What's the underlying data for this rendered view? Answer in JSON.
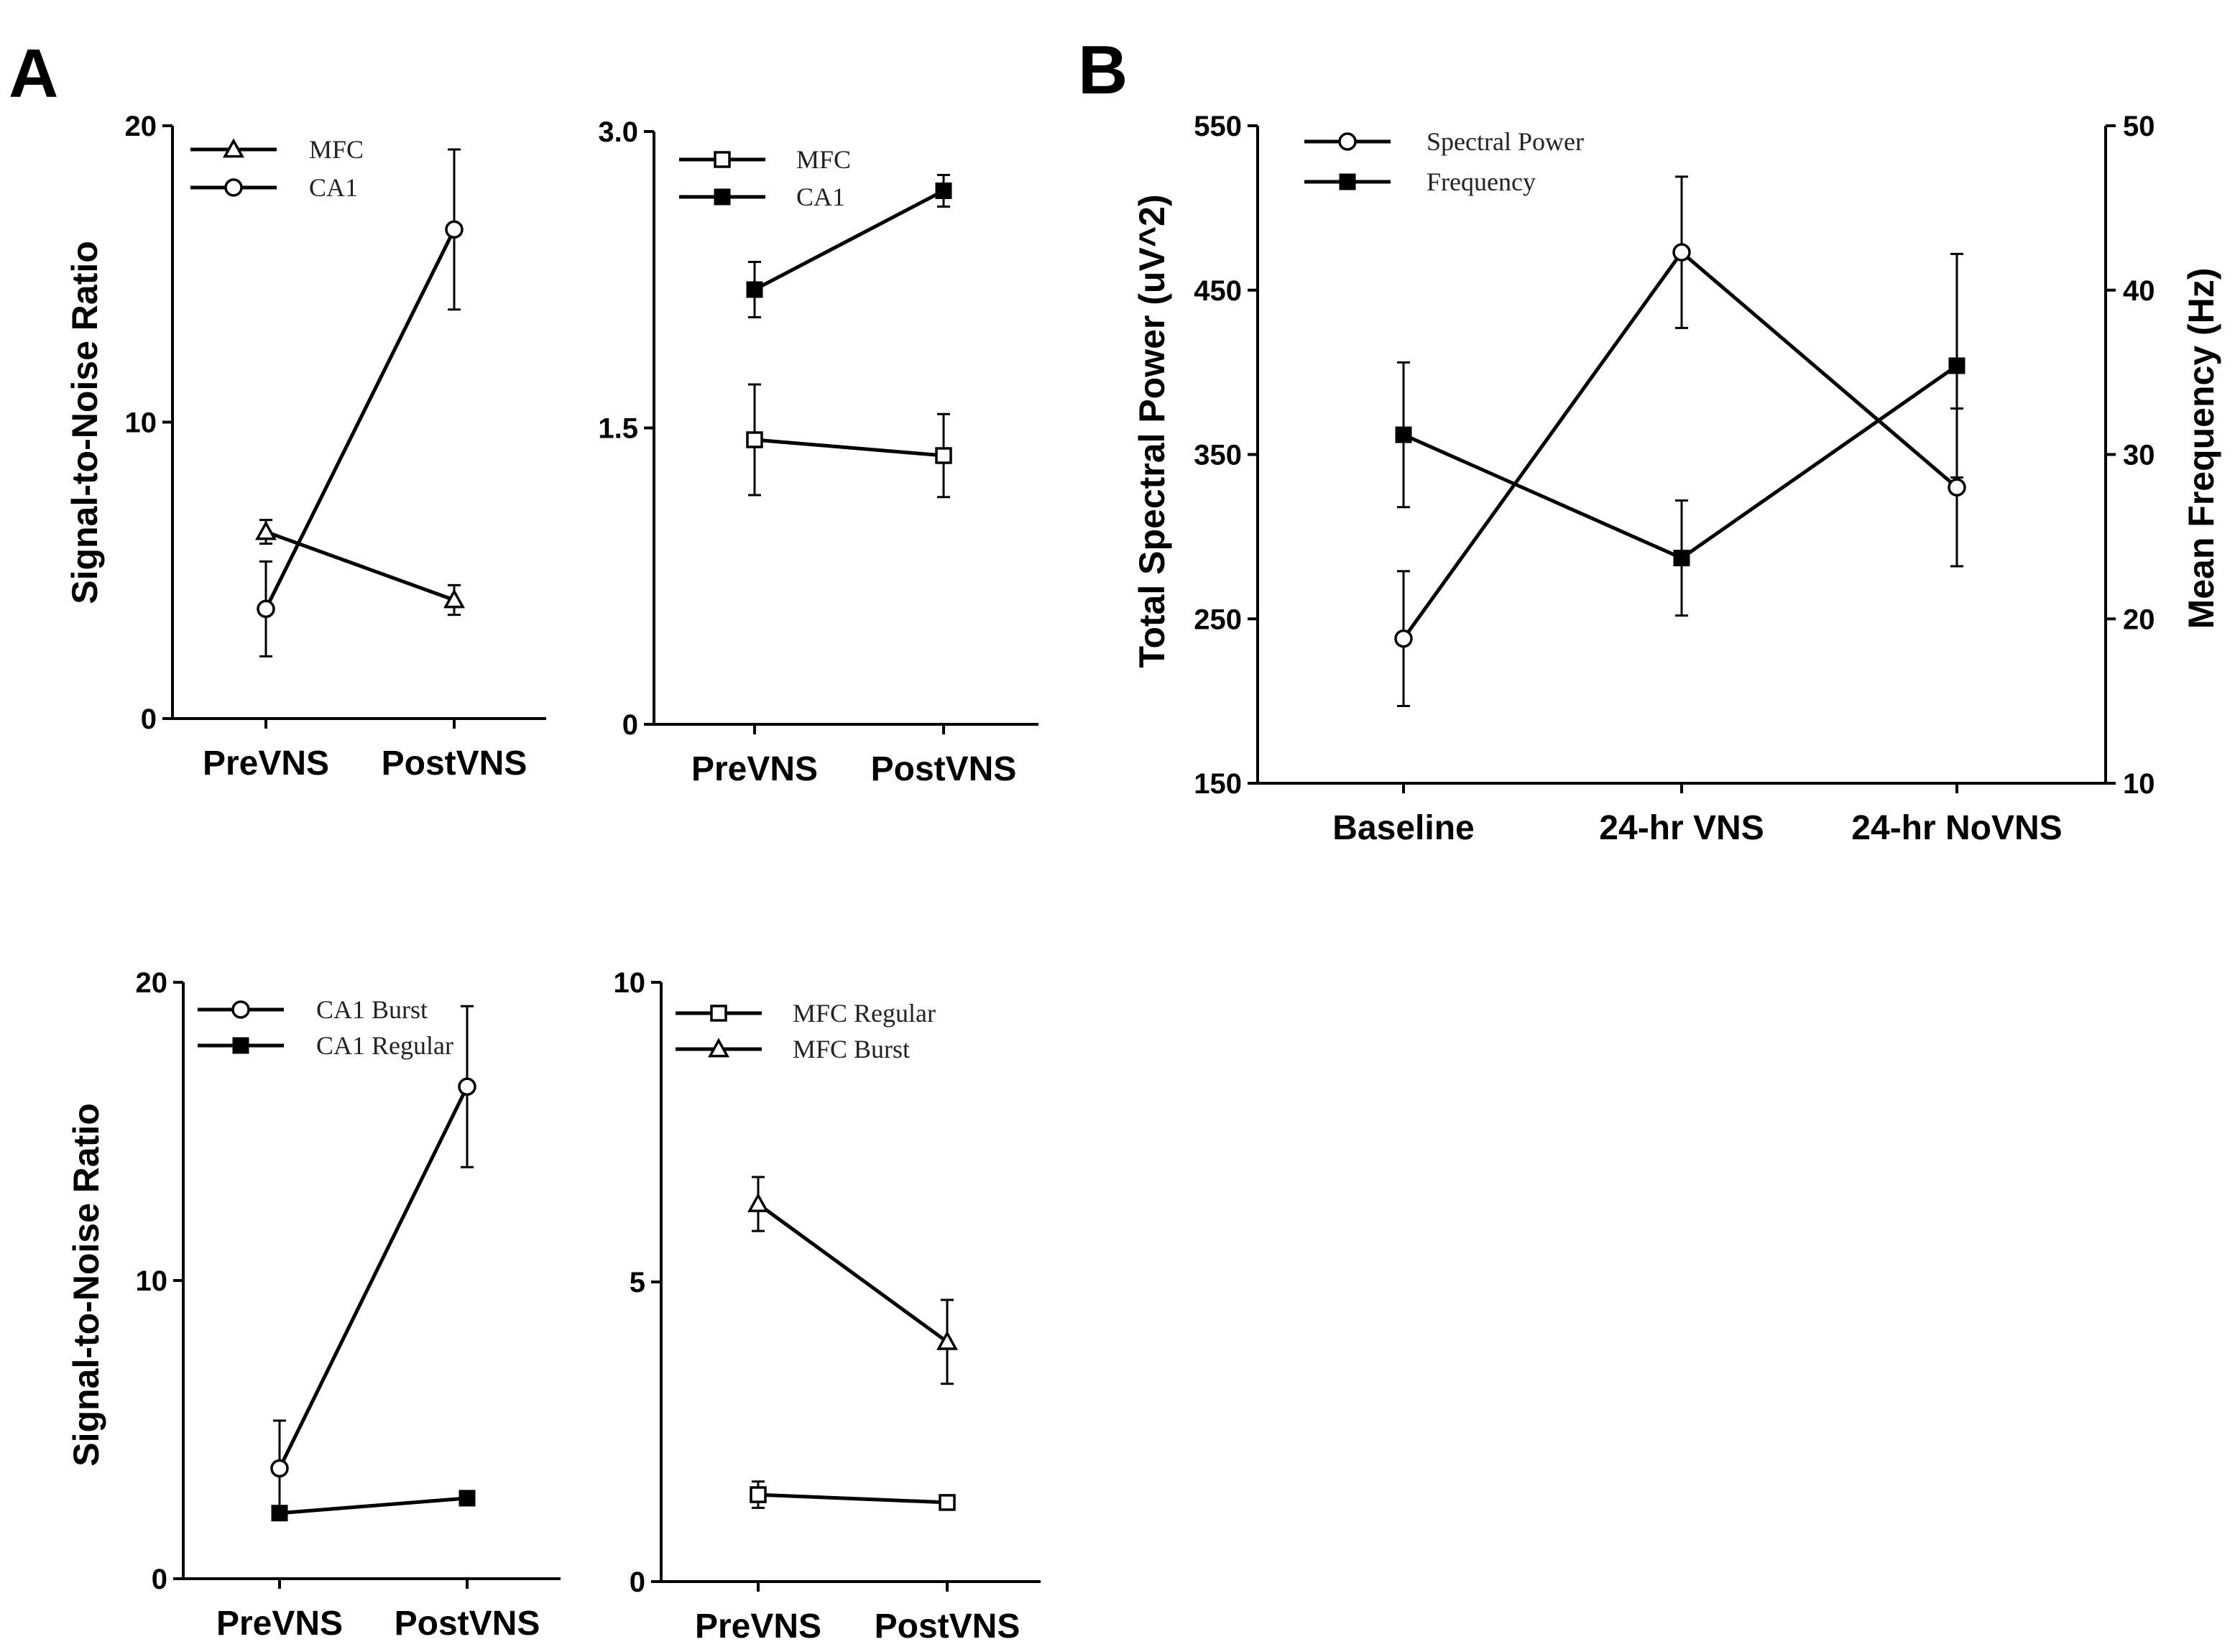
{
  "panel_labels": [
    "A",
    "B"
  ],
  "chart_data": [
    {
      "type": "line",
      "panel": "A",
      "ylabel": "Signal-to-Noise Ratio",
      "xlabel": "",
      "categories": [
        "PreVNS",
        "PostVNS"
      ],
      "ylim": [
        0,
        20
      ],
      "yticks": [
        0,
        10,
        20
      ],
      "ytick_labels": [
        "0",
        "10",
        "20"
      ],
      "series": [
        {
          "name": "MFC",
          "marker": "triangle-open",
          "values": [
            6.3,
            4.0
          ],
          "err": [
            0.4,
            0.5
          ]
        },
        {
          "name": "CA1",
          "marker": "circle-open",
          "values": [
            3.7,
            16.5
          ],
          "err": [
            1.6,
            2.7
          ]
        }
      ]
    },
    {
      "type": "line",
      "panel": "A",
      "ylabel": "",
      "xlabel": "",
      "categories": [
        "PreVNS",
        "PostVNS"
      ],
      "ylim": [
        0,
        3.0
      ],
      "yticks": [
        0,
        1.5,
        3.0
      ],
      "ytick_labels": [
        "0",
        "1.5",
        "3.0"
      ],
      "series": [
        {
          "name": "MFC",
          "marker": "square-open",
          "values": [
            1.44,
            1.36
          ],
          "err": [
            0.28,
            0.21
          ]
        },
        {
          "name": "CA1",
          "marker": "square-filled",
          "values": [
            2.2,
            2.7
          ],
          "err": [
            0.14,
            0.08
          ]
        }
      ]
    },
    {
      "type": "line",
      "panel": "A",
      "ylabel": "Signal-to-Noise Ratio",
      "xlabel": "",
      "categories": [
        "PreVNS",
        "PostVNS"
      ],
      "ylim": [
        0,
        20
      ],
      "yticks": [
        0,
        10,
        20
      ],
      "ytick_labels": [
        "0",
        "10",
        "20"
      ],
      "series": [
        {
          "name": "CA1 Burst",
          "marker": "circle-open",
          "values": [
            3.7,
            16.5
          ],
          "err": [
            1.6,
            2.7
          ]
        },
        {
          "name": "CA1 Regular",
          "marker": "square-filled",
          "values": [
            2.2,
            2.7
          ],
          "err": [
            0.15,
            0.1
          ]
        }
      ]
    },
    {
      "type": "line",
      "panel": "A",
      "ylabel": "",
      "xlabel": "",
      "categories": [
        "PreVNS",
        "PostVNS"
      ],
      "ylim": [
        0,
        10
      ],
      "yticks": [
        0,
        5,
        10
      ],
      "ytick_labels": [
        "0",
        "5",
        "10"
      ],
      "series": [
        {
          "name": "MFC Regular",
          "marker": "square-open",
          "values": [
            1.45,
            1.32
          ],
          "err": [
            0.22,
            0.1
          ]
        },
        {
          "name": "MFC Burst",
          "marker": "triangle-open",
          "values": [
            6.3,
            4.0
          ],
          "err": [
            0.45,
            0.7
          ]
        }
      ]
    },
    {
      "type": "line",
      "panel": "B",
      "ylabel": "Total Spectral Power (uV^2)",
      "ylabel_right": "Mean Frequency (Hz)",
      "xlabel": "",
      "categories": [
        "Baseline",
        "24-hr VNS",
        "24-hr NoVNS"
      ],
      "ylim": [
        150,
        550
      ],
      "yticks": [
        150,
        250,
        350,
        450,
        550
      ],
      "ytick_labels": [
        "150",
        "250",
        "350",
        "450",
        "550"
      ],
      "ylim_right": [
        10,
        50
      ],
      "yticks_right": [
        10,
        20,
        30,
        40,
        50
      ],
      "ytick_labels_right": [
        "10",
        "20",
        "30",
        "40",
        "50"
      ],
      "series": [
        {
          "name": "Spectral Power",
          "axis": "left",
          "marker": "circle-open",
          "values": [
            238,
            473,
            330
          ],
          "err": [
            41,
            46,
            48
          ]
        },
        {
          "name": "Frequency",
          "axis": "right",
          "marker": "square-filled",
          "values": [
            31.2,
            23.7,
            35.4
          ],
          "err": [
            4.4,
            3.5,
            6.8
          ]
        }
      ]
    }
  ]
}
